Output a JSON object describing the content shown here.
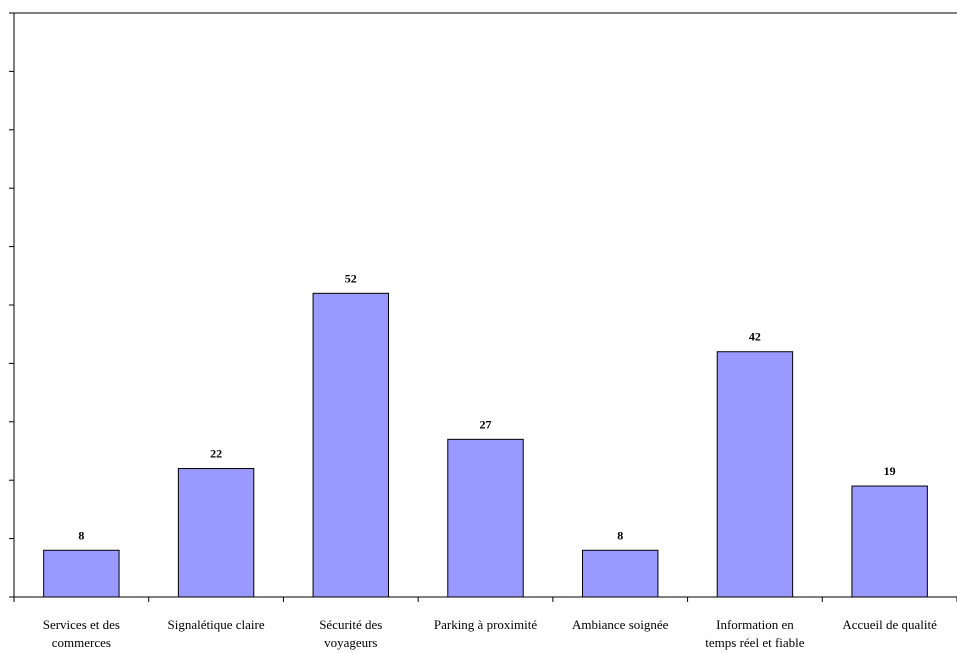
{
  "chart_data": {
    "type": "bar",
    "title": "",
    "xlabel": "",
    "ylabel": "",
    "categories": [
      [
        "Services et des",
        "commerces"
      ],
      [
        "Signalétique claire"
      ],
      [
        "Sécurité des",
        "voyageurs"
      ],
      [
        "Parking à proximité"
      ],
      [
        "Ambiance soignée"
      ],
      [
        "Information en",
        "temps réel et fiable"
      ],
      [
        "Accueil de qualité"
      ]
    ],
    "values": [
      8,
      22,
      52,
      27,
      8,
      42,
      19
    ],
    "value_labels": [
      "8",
      "22",
      "52",
      "27",
      "8",
      "42",
      "19"
    ],
    "ylim": [
      0,
      100
    ],
    "y_tick_step": 10,
    "y_tick_labels_shown": false,
    "grid": false,
    "legend": "none",
    "colors": {
      "bar_fill": "#9999ff",
      "bar_stroke": "#000000",
      "axis": "#000000",
      "background": "#ffffff"
    }
  }
}
